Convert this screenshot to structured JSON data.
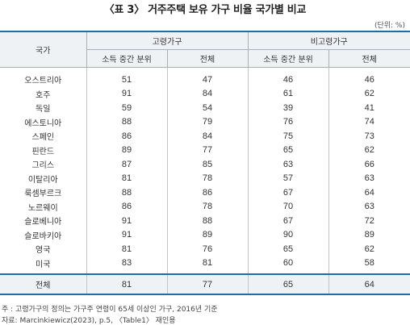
{
  "title": "〈표 3〉 거주주택 보유 가구 비율 국가별 비교",
  "unit": "(단위: %)",
  "header": {
    "country": "국가",
    "group_elderly": "고령가구",
    "group_nonelderly": "비고령가구",
    "sub_median": "소득 중간 분위",
    "sub_total": "전체"
  },
  "rows": [
    {
      "country": "오스트리아",
      "v": [
        "51",
        "47",
        "46",
        "46"
      ]
    },
    {
      "country": "호주",
      "v": [
        "91",
        "84",
        "61",
        "62"
      ]
    },
    {
      "country": "독일",
      "v": [
        "59",
        "54",
        "39",
        "41"
      ]
    },
    {
      "country": "에스토니아",
      "v": [
        "88",
        "79",
        "76",
        "74"
      ]
    },
    {
      "country": "스페인",
      "v": [
        "86",
        "84",
        "75",
        "73"
      ]
    },
    {
      "country": "핀란드",
      "v": [
        "89",
        "77",
        "65",
        "62"
      ]
    },
    {
      "country": "그리스",
      "v": [
        "87",
        "85",
        "63",
        "66"
      ]
    },
    {
      "country": "이탈리아",
      "v": [
        "81",
        "78",
        "57",
        "63"
      ]
    },
    {
      "country": "룩셈부르크",
      "v": [
        "88",
        "86",
        "67",
        "64"
      ]
    },
    {
      "country": "노르웨이",
      "v": [
        "86",
        "78",
        "70",
        "63"
      ]
    },
    {
      "country": "슬로베니아",
      "v": [
        "91",
        "88",
        "67",
        "72"
      ]
    },
    {
      "country": "슬로바키아",
      "v": [
        "91",
        "89",
        "90",
        "89"
      ]
    },
    {
      "country": "영국",
      "v": [
        "81",
        "76",
        "65",
        "62"
      ]
    },
    {
      "country": "미국",
      "v": [
        "83",
        "81",
        "60",
        "58"
      ]
    }
  ],
  "total": {
    "country": "전체",
    "v": [
      "81",
      "77",
      "65",
      "64"
    ]
  },
  "notes": {
    "note": "주 : 고령가구의 정의는 가구주 연령이 65세 이상인 가구, 2016년 기준",
    "source": "자료: Marcinkiewicz(2023), p.5, 〈Table1〉 재인용"
  }
}
